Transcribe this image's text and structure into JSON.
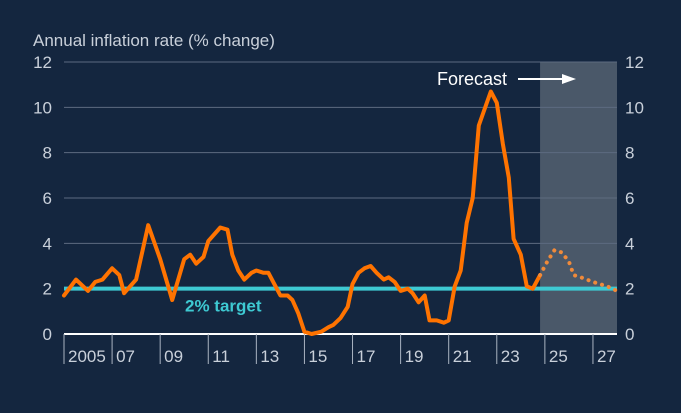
{
  "chart_data": {
    "type": "line",
    "title": "Annual inflation rate (% change)",
    "xlabel": "",
    "ylabel": "",
    "ylim": [
      0,
      12
    ],
    "xlim": [
      2005,
      2028
    ],
    "yticks": [
      "0",
      "2",
      "4",
      "6",
      "8",
      "10",
      "12"
    ],
    "xticks": [
      {
        "year": 2005,
        "label": "2005"
      },
      {
        "year": 2007,
        "label": "07"
      },
      {
        "year": 2009,
        "label": "09"
      },
      {
        "year": 2011,
        "label": "11"
      },
      {
        "year": 2013,
        "label": "13"
      },
      {
        "year": 2015,
        "label": "15"
      },
      {
        "year": 2017,
        "label": "17"
      },
      {
        "year": 2019,
        "label": "19"
      },
      {
        "year": 2021,
        "label": "21"
      },
      {
        "year": 2023,
        "label": "23"
      },
      {
        "year": 2025,
        "label": "25"
      },
      {
        "year": 2027,
        "label": "27"
      }
    ],
    "grid": true,
    "forecast_start": 2024.8,
    "forecast_label": "Forecast",
    "target": {
      "value": 2,
      "label": "2% target",
      "color": "#3ec9d2"
    },
    "colors": {
      "background": "#14263f",
      "line": "#ff7300",
      "forecast_shade": "#4a5869",
      "grid": "#5d6b80"
    },
    "series": [
      {
        "style": "solid",
        "x": [
          2005.0,
          2005.5,
          2006.0,
          2006.3,
          2006.6,
          2007.0,
          2007.3,
          2007.5,
          2008.0,
          2008.5,
          2009.0,
          2009.5,
          2010.0,
          2010.25,
          2010.5,
          2010.8,
          2011.0,
          2011.5,
          2011.8,
          2012.0,
          2012.25,
          2012.5,
          2012.8,
          2013.0,
          2013.3,
          2013.5,
          2013.8,
          2014.0,
          2014.3,
          2014.5,
          2014.75,
          2015.0,
          2015.3,
          2015.7,
          2016.0,
          2016.2,
          2016.5,
          2016.8,
          2017.0,
          2017.25,
          2017.5,
          2017.75,
          2018.0,
          2018.3,
          2018.5,
          2018.75,
          2019.0,
          2019.3,
          2019.5,
          2019.75,
          2020.0,
          2020.2,
          2020.5,
          2020.8,
          2021.0,
          2021.25,
          2021.5,
          2021.75,
          2022.0,
          2022.25,
          2022.75,
          2023.0,
          2023.25,
          2023.5,
          2023.7,
          2024.0,
          2024.25,
          2024.5,
          2024.8
        ],
        "y": [
          1.7,
          2.4,
          1.9,
          2.3,
          2.4,
          2.9,
          2.6,
          1.8,
          2.4,
          4.8,
          3.3,
          1.5,
          3.3,
          3.5,
          3.1,
          3.4,
          4.1,
          4.7,
          4.6,
          3.5,
          2.8,
          2.4,
          2.7,
          2.8,
          2.7,
          2.7,
          2.1,
          1.7,
          1.7,
          1.5,
          0.9,
          0.1,
          0.0,
          0.1,
          0.3,
          0.4,
          0.7,
          1.2,
          2.2,
          2.7,
          2.9,
          3.0,
          2.7,
          2.4,
          2.5,
          2.3,
          1.9,
          2.0,
          1.8,
          1.4,
          1.7,
          0.6,
          0.6,
          0.5,
          0.6,
          2.1,
          2.8,
          4.9,
          6.0,
          9.2,
          10.7,
          10.2,
          8.4,
          6.9,
          4.2,
          3.5,
          2.1,
          2.0,
          2.6
        ]
      },
      {
        "style": "dotted",
        "x": [
          2024.8,
          2025.1,
          2025.4,
          2025.7,
          2026.0,
          2026.2,
          2026.5,
          2027.0,
          2027.6,
          2028.0
        ],
        "y": [
          2.6,
          3.2,
          3.7,
          3.6,
          3.2,
          2.6,
          2.5,
          2.3,
          2.1,
          1.9
        ]
      }
    ]
  }
}
